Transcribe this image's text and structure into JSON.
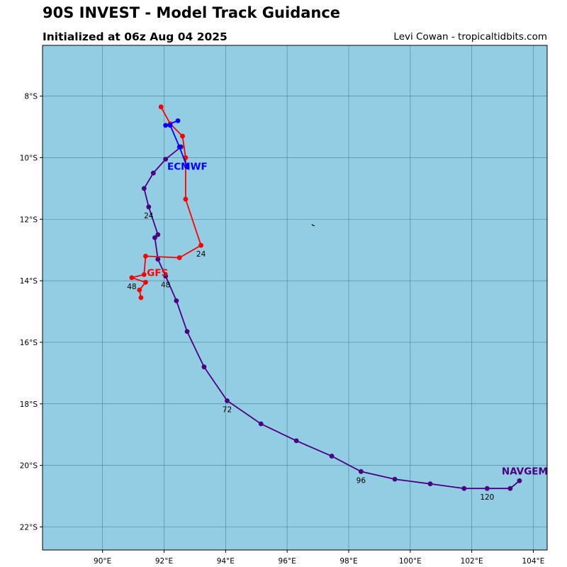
{
  "header": {
    "title": "90S INVEST - Model Track Guidance",
    "subtitle": "Initialized at 06z Aug 04 2025",
    "credit": "Levi Cowan - tropicaltidbits.com"
  },
  "colors": {
    "ocean": "#93cde3",
    "grid": "#3f6f80",
    "ECMWF": "#0000ff",
    "GFS": "#ff0000",
    "NAVGEM": "#4b0082"
  },
  "chart_data": {
    "type": "map-tracks",
    "lon_range": [
      88.05,
      104.45
    ],
    "lat_range": [
      -22.75,
      -6.35
    ],
    "lon_ticks": [
      90,
      92,
      94,
      96,
      98,
      100,
      102,
      104
    ],
    "lon_tick_labels": [
      "90°E",
      "92°E",
      "94°E",
      "96°E",
      "98°E",
      "100°E",
      "102°E",
      "104°E"
    ],
    "lat_ticks": [
      -8,
      -10,
      -12,
      -14,
      -16,
      -18,
      -20,
      -22
    ],
    "lat_tick_labels": [
      "8°S",
      "10°S",
      "12°S",
      "14°S",
      "16°S",
      "18°S",
      "20°S",
      "22°S"
    ],
    "tracks": [
      {
        "model": "ECMWF",
        "label": "ECMWF",
        "points": [
          [
            92.75,
            -10.3
          ],
          [
            92.5,
            -9.65
          ],
          [
            92.2,
            -8.95
          ],
          [
            92.05,
            -8.95
          ],
          [
            92.45,
            -8.8
          ]
        ]
      },
      {
        "model": "GFS",
        "label": "GFS",
        "points": [
          [
            91.9,
            -8.35
          ],
          [
            92.2,
            -8.9
          ],
          [
            92.6,
            -9.3
          ],
          [
            92.7,
            -10.0
          ],
          [
            92.7,
            -11.35
          ],
          [
            93.2,
            -12.85
          ],
          [
            92.5,
            -13.25
          ],
          [
            91.4,
            -13.2
          ],
          [
            91.35,
            -13.8
          ],
          [
            90.95,
            -13.9
          ],
          [
            91.4,
            -14.05
          ],
          [
            91.2,
            -14.3
          ],
          [
            91.25,
            -14.55
          ]
        ],
        "hour_labels": [
          {
            "text": "24",
            "lon": 93.2,
            "lat": -12.85
          },
          {
            "text": "48",
            "lon": 90.95,
            "lat": -13.9
          }
        ]
      },
      {
        "model": "NAVGEM",
        "label": "NAVGEM",
        "points": [
          [
            92.55,
            -9.65
          ],
          [
            92.05,
            -10.05
          ],
          [
            91.65,
            -10.5
          ],
          [
            91.35,
            -11.0
          ],
          [
            91.5,
            -11.6
          ],
          [
            91.8,
            -12.5
          ],
          [
            91.7,
            -12.6
          ],
          [
            91.8,
            -13.3
          ],
          [
            92.05,
            -13.85
          ],
          [
            92.4,
            -14.65
          ],
          [
            92.75,
            -15.65
          ],
          [
            93.3,
            -16.8
          ],
          [
            94.05,
            -17.9
          ],
          [
            95.15,
            -18.65
          ],
          [
            96.3,
            -19.2
          ],
          [
            97.45,
            -19.7
          ],
          [
            98.4,
            -20.2
          ],
          [
            99.5,
            -20.45
          ],
          [
            100.65,
            -20.6
          ],
          [
            101.75,
            -20.75
          ],
          [
            102.5,
            -20.75
          ],
          [
            103.25,
            -20.75
          ],
          [
            103.55,
            -20.5
          ]
        ],
        "hour_labels": [
          {
            "text": "24",
            "lon": 91.5,
            "lat": -11.6
          },
          {
            "text": "48",
            "lon": 92.05,
            "lat": -13.85
          },
          {
            "text": "72",
            "lon": 94.05,
            "lat": -17.9
          },
          {
            "text": "96",
            "lon": 98.4,
            "lat": -20.2
          },
          {
            "text": "120",
            "lon": 102.5,
            "lat": -20.75
          }
        ]
      }
    ],
    "land_features": [
      {
        "lon": 96.85,
        "lat": -12.18
      }
    ]
  }
}
